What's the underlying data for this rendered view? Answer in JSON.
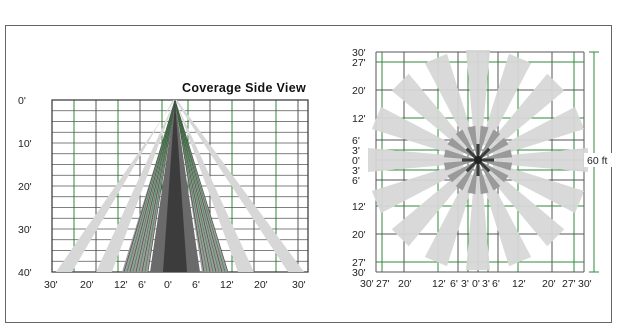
{
  "side_view": {
    "title": "Coverage Side View",
    "depth_labels": [
      "0'",
      "10'",
      "20'",
      "30'",
      "40'"
    ],
    "width_labels": [
      "30'",
      "20'",
      "12'",
      "6'",
      "0'",
      "6'",
      "12'",
      "20'",
      "30'"
    ]
  },
  "top_view": {
    "left_labels": [
      "30'",
      "27'",
      "20'",
      "12'",
      "6'",
      "3'",
      "0'",
      "3'",
      "6'",
      "12'",
      "20'",
      "27'",
      "30'"
    ],
    "bottom_labels": [
      "30'",
      "27'",
      "20'",
      "12'",
      "6'",
      "3'",
      "0'",
      "3'",
      "6'",
      "12'",
      "20'",
      "27'",
      "30'"
    ],
    "dimension_label": "60 ft"
  },
  "colors": {
    "grid": "#555555",
    "green_lines": "#2f8a3a",
    "outer_beam": "#d7d7d7",
    "mid_beam": "#9a9a9a",
    "center_beam": "#3c3c3c"
  }
}
